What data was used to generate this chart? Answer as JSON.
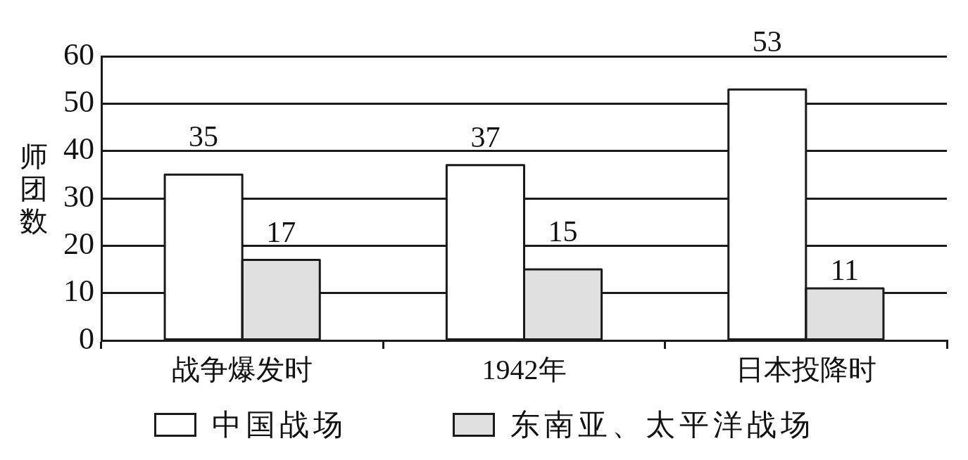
{
  "chart_data": {
    "type": "bar",
    "ylabel": "师团数",
    "categories": [
      "战争爆发时",
      "1942年",
      "日本投降时"
    ],
    "series": [
      {
        "name": "中国战场",
        "color": "#ffffff",
        "values": [
          35,
          37,
          53
        ]
      },
      {
        "name": "东南亚、太平洋战场",
        "color": "#e0e0e0",
        "values": [
          17,
          15,
          11
        ]
      }
    ],
    "ylim": [
      0,
      60
    ],
    "yticks": [
      0,
      10,
      20,
      30,
      40,
      50,
      60
    ],
    "grid": "y",
    "legend": "bottom",
    "data_labels": true
  }
}
